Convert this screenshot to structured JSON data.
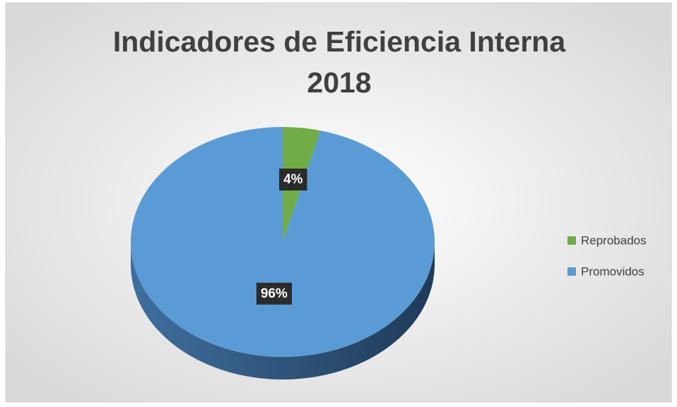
{
  "chart_data": {
    "type": "pie",
    "title": "Indicadores de Eficiencia Interna 2018",
    "categories": [
      "Reprobados",
      "Promovidos"
    ],
    "values": [
      4,
      96
    ],
    "value_labels": [
      "4%",
      "96%"
    ],
    "colors": [
      "#70ad47",
      "#5b9bd5"
    ],
    "legend": "right"
  }
}
